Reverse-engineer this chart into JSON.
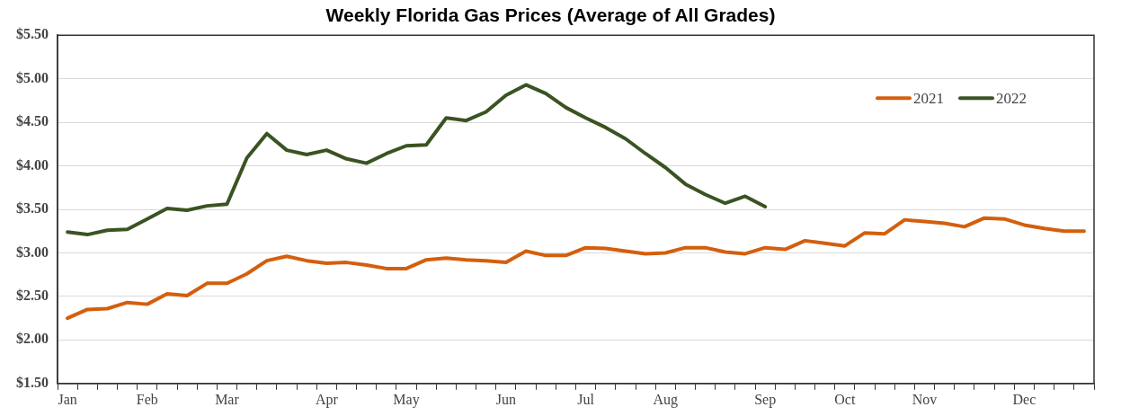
{
  "chart_data": {
    "type": "line",
    "title": "Weekly Florida Gas Prices (Average of All Grades)",
    "categories": [
      "Jan",
      null,
      null,
      null,
      "Feb",
      null,
      null,
      null,
      "Mar",
      null,
      null,
      null,
      null,
      "Apr",
      null,
      null,
      null,
      "May",
      null,
      null,
      null,
      null,
      "Jun",
      null,
      null,
      null,
      "Jul",
      null,
      null,
      null,
      "Aug",
      null,
      null,
      null,
      null,
      "Sep",
      null,
      null,
      null,
      "Oct",
      null,
      null,
      null,
      "Nov",
      null,
      null,
      null,
      null,
      "Dec",
      null,
      null,
      null
    ],
    "series": [
      {
        "name": "2021",
        "color": "#d35f0e",
        "values": [
          2.25,
          2.35,
          2.36,
          2.43,
          2.41,
          2.53,
          2.51,
          2.65,
          2.65,
          2.76,
          2.91,
          2.96,
          2.91,
          2.88,
          2.89,
          2.86,
          2.82,
          2.82,
          2.92,
          2.94,
          2.92,
          2.91,
          2.89,
          3.02,
          2.97,
          2.97,
          3.06,
          3.05,
          3.02,
          2.99,
          3.0,
          3.06,
          3.06,
          3.01,
          2.99,
          3.06,
          3.04,
          3.14,
          3.11,
          3.08,
          3.23,
          3.22,
          3.38,
          3.36,
          3.34,
          3.3,
          3.4,
          3.39,
          3.32,
          3.28,
          3.25,
          3.25
        ]
      },
      {
        "name": "2022",
        "color": "#3b5323",
        "values": [
          3.24,
          3.21,
          3.26,
          3.27,
          3.39,
          3.51,
          3.49,
          3.54,
          3.56,
          4.09,
          4.37,
          4.18,
          4.13,
          4.18,
          4.08,
          4.03,
          4.14,
          4.23,
          4.24,
          4.55,
          4.52,
          4.62,
          4.81,
          4.93,
          4.83,
          4.67,
          4.55,
          4.44,
          4.31,
          4.14,
          3.98,
          3.79,
          3.67,
          3.57,
          3.65,
          3.53,
          null,
          null,
          null,
          null,
          null,
          null,
          null,
          null,
          null,
          null,
          null,
          null,
          null,
          null,
          null,
          null
        ]
      }
    ],
    "ylim": [
      1.5,
      5.5
    ],
    "yticks": [
      {
        "value": 1.5,
        "label": "$1.50"
      },
      {
        "value": 2,
        "label": "$2.00"
      },
      {
        "value": 2.5,
        "label": "$2.50"
      },
      {
        "value": 3,
        "label": "$3.00"
      },
      {
        "value": 3.5,
        "label": "$3.50"
      },
      {
        "value": 4,
        "label": "$4.00"
      },
      {
        "value": 4.5,
        "label": "$4.50"
      },
      {
        "value": 5,
        "label": "$5.00"
      },
      {
        "value": 5.5,
        "label": "$5.50"
      }
    ],
    "grid": "y",
    "legend": "top right",
    "marker": "none",
    "line_style": "solid"
  }
}
